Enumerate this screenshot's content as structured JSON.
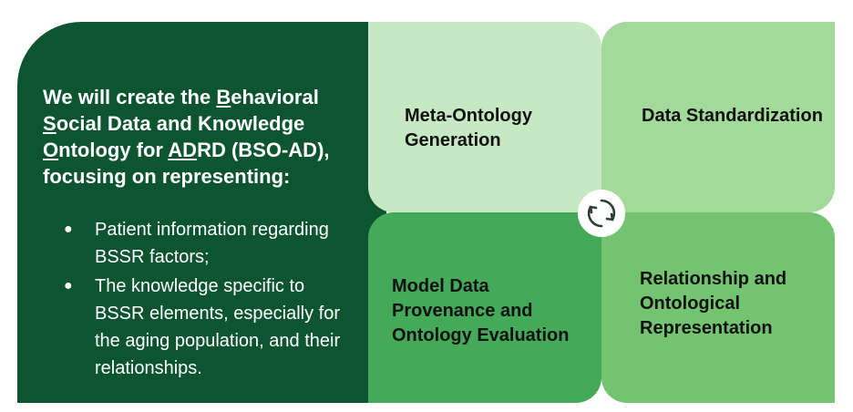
{
  "intro": {
    "heading_parts": [
      "We will create the ",
      "B",
      "ehavioral ",
      "S",
      "ocial Data and Knowledge ",
      "O",
      "ntology for ",
      "AD",
      "RD (BSO-AD), focusing on representing:"
    ],
    "bullets": [
      "Patient information regarding BSSR factors;",
      "The knowledge specific to BSSR elements, especially for the aging population, and their relationships."
    ],
    "bullet_glyph": "●"
  },
  "tiles": [
    {
      "label": "Meta-Ontology Generation",
      "color": "#c6e8c3"
    },
    {
      "label": "Data Standardization",
      "color": "#a3d99a"
    },
    {
      "label": "Model Data Provenance and Ontology Evaluation",
      "color": "#45a95a"
    },
    {
      "label": "Relationship and Ontological Representation",
      "color": "#73c371"
    }
  ],
  "colors": {
    "panel": "#0d5431",
    "cycle_icon": "#2e3f3a"
  },
  "icons": {
    "center": "cycle-arrows-icon"
  }
}
